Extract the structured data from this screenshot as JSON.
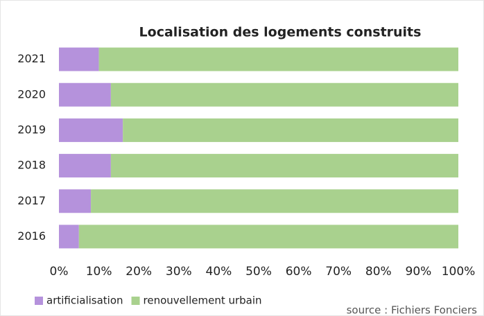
{
  "chart_data": {
    "type": "stacked-bar-horizontal",
    "title": "Localisation des logements  construits",
    "categories": [
      "2021",
      "2020",
      "2019",
      "2018",
      "2017",
      "2016"
    ],
    "series": [
      {
        "name": "artificialisation",
        "color": "#b592dc",
        "values": [
          10,
          13,
          16,
          13,
          8,
          5
        ]
      },
      {
        "name": "renouvellement urbain",
        "color": "#a9d18e",
        "values": [
          90,
          87,
          84,
          87,
          92,
          95
        ]
      }
    ],
    "xlim": [
      0,
      100
    ],
    "xticks": [
      {
        "value": 0,
        "label": "0%"
      },
      {
        "value": 10,
        "label": "10%"
      },
      {
        "value": 20,
        "label": "20%"
      },
      {
        "value": 30,
        "label": "30%"
      },
      {
        "value": 40,
        "label": "40%"
      },
      {
        "value": 50,
        "label": "50%"
      },
      {
        "value": 60,
        "label": "60%"
      },
      {
        "value": 70,
        "label": "70%"
      },
      {
        "value": 80,
        "label": "80%"
      },
      {
        "value": 90,
        "label": "90%"
      },
      {
        "value": 100,
        "label": "100%"
      }
    ],
    "grid": false,
    "legend": "bottom-left",
    "source": "source : Fichiers Fonciers"
  }
}
